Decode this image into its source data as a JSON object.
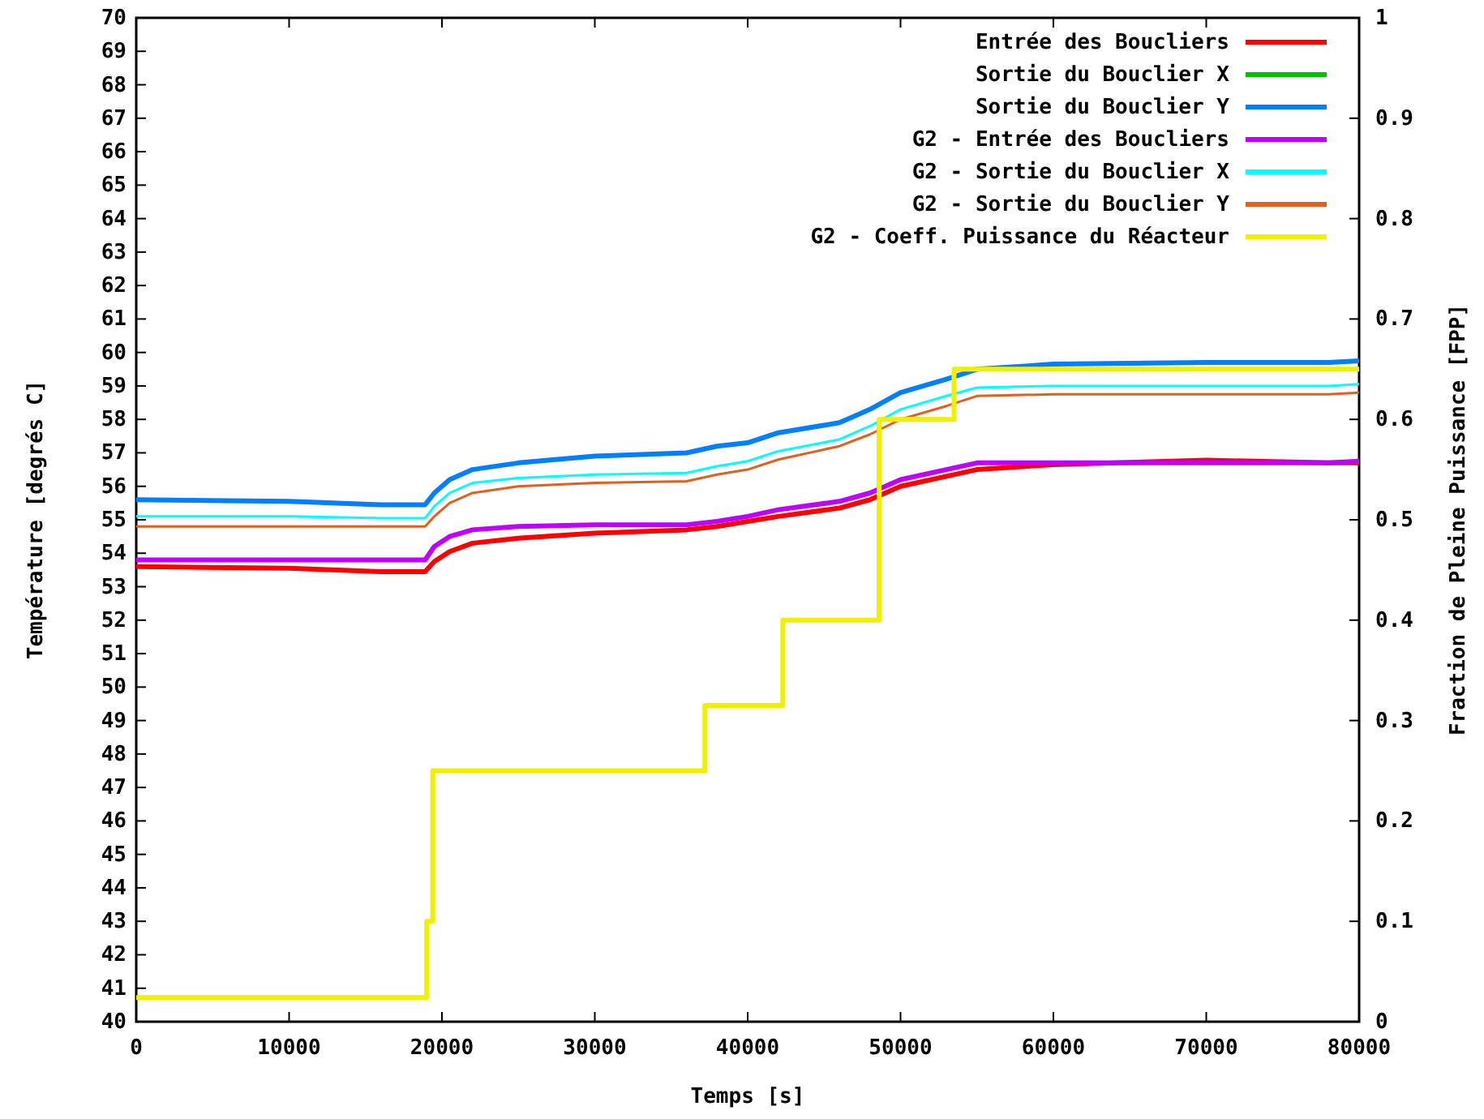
{
  "chart_data": {
    "type": "line",
    "xlabel": "Temps [s]",
    "ylabel": "Température [degrés C]",
    "y2label": "Fraction de Pleine Puissance [FPP]",
    "xlim": [
      0,
      80000
    ],
    "xticks": [
      0,
      10000,
      20000,
      30000,
      40000,
      50000,
      60000,
      70000,
      80000
    ],
    "ylim": [
      40,
      70
    ],
    "yticks": [
      40,
      41,
      42,
      43,
      44,
      45,
      46,
      47,
      48,
      49,
      50,
      51,
      52,
      53,
      54,
      55,
      56,
      57,
      58,
      59,
      60,
      61,
      62,
      63,
      64,
      65,
      66,
      67,
      68,
      69,
      70
    ],
    "y2lim": [
      0,
      1
    ],
    "y2ticks": [
      0,
      0.1,
      0.2,
      0.3,
      0.4,
      0.5,
      0.6,
      0.7,
      0.8,
      0.9,
      1
    ],
    "grid": false,
    "legend": "top right",
    "line_style": "solid",
    "marker": "none",
    "x": [
      0,
      10000,
      16000,
      18900,
      19500,
      20500,
      22000,
      25000,
      30000,
      36000,
      38000,
      40000,
      42000,
      46000,
      48000,
      50000,
      53000,
      55000,
      60000,
      70000,
      78000,
      80000
    ],
    "series": [
      {
        "name": "Entrée des Boucliers",
        "color": "#ff0000",
        "values": [
          53.6,
          53.55,
          53.45,
          53.45,
          53.75,
          54.05,
          54.3,
          54.45,
          54.6,
          54.7,
          54.8,
          54.95,
          55.1,
          55.35,
          55.6,
          56.0,
          56.3,
          56.5,
          56.65,
          56.78,
          56.7,
          56.7
        ]
      },
      {
        "name": "Sortie du Bouclier X",
        "color": "#00c000",
        "values": [
          null,
          null,
          null,
          null,
          null,
          null,
          null,
          null,
          null,
          null,
          null,
          null,
          null,
          null,
          null,
          null,
          null,
          null,
          null,
          null,
          null,
          null
        ]
      },
      {
        "name": "Sortie du Bouclier Y",
        "color": "#0080ff",
        "values": [
          55.6,
          55.55,
          55.45,
          55.45,
          55.8,
          56.2,
          56.5,
          56.7,
          56.9,
          57.0,
          57.2,
          57.3,
          57.6,
          57.9,
          58.3,
          58.8,
          59.2,
          59.5,
          59.65,
          59.7,
          59.7,
          59.75
        ]
      },
      {
        "name": "G2 - Entrée des Boucliers",
        "color": "#c000ff",
        "values": [
          53.8,
          53.8,
          53.8,
          53.8,
          54.2,
          54.5,
          54.7,
          54.8,
          54.85,
          54.85,
          54.95,
          55.1,
          55.3,
          55.55,
          55.8,
          56.2,
          56.5,
          56.7,
          56.7,
          56.7,
          56.7,
          56.75
        ]
      },
      {
        "name": "G2 - Sortie du Bouclier X",
        "color": "#00ffff",
        "values": [
          55.1,
          55.1,
          55.05,
          55.05,
          55.4,
          55.8,
          56.1,
          56.25,
          56.35,
          56.4,
          56.6,
          56.75,
          57.05,
          57.4,
          57.8,
          58.3,
          58.7,
          58.95,
          59.0,
          59.0,
          59.0,
          59.05
        ]
      },
      {
        "name": "G2 - Sortie du Bouclier Y",
        "color": "#e06020",
        "values": [
          54.8,
          54.8,
          54.8,
          54.8,
          55.1,
          55.5,
          55.8,
          56.0,
          56.1,
          56.15,
          56.35,
          56.5,
          56.8,
          57.2,
          57.55,
          58.0,
          58.4,
          58.7,
          58.75,
          58.75,
          58.75,
          58.8
        ]
      },
      {
        "name": "G2 - Coeff. Puissance du Réacteur",
        "color": "#f0f000",
        "axis": "y2",
        "type": "step",
        "x": [
          0,
          18800,
          19000,
          19400,
          36500,
          37200,
          41500,
          42300,
          46500,
          48600,
          53000,
          53500,
          80000
        ],
        "values": [
          0.024,
          0.024,
          0.1,
          0.25,
          0.25,
          0.315,
          0.315,
          0.4,
          0.4,
          0.6,
          0.6,
          0.65,
          0.65
        ]
      }
    ]
  }
}
